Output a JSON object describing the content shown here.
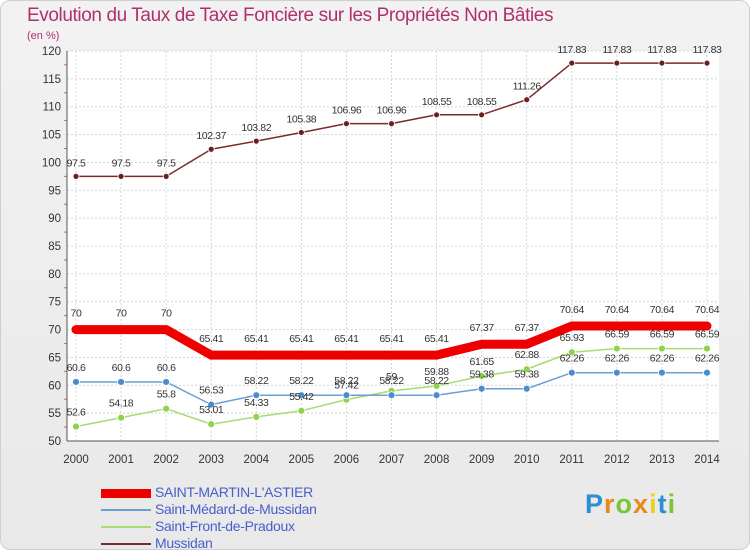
{
  "header": {
    "title": "Evolution du Taux de Taxe Foncière sur les Propriétés Non Bâties",
    "unit": "(en %)"
  },
  "brand": {
    "letters": [
      "P",
      "r",
      "o",
      "x",
      "i",
      "t",
      "i"
    ],
    "colors": [
      "#2c8fd4",
      "#e8891a",
      "#7cc43a",
      "#e8891a",
      "#e8d21a",
      "#2c8fd4",
      "#7cc43a"
    ]
  },
  "chart_data": {
    "type": "line",
    "title": "Evolution du Taux de Taxe Foncière sur les Propriétés Non Bâties",
    "ylabel": "(en %)",
    "xlabel": "",
    "ylim": [
      50,
      120
    ],
    "yticks": [
      "50",
      "55",
      "60",
      "65",
      "70",
      "75",
      "80",
      "85",
      "90",
      "95",
      "100",
      "105",
      "110",
      "115",
      "120"
    ],
    "x": [
      "2000",
      "2001",
      "2002",
      "2003",
      "2004",
      "2005",
      "2006",
      "2007",
      "2008",
      "2009",
      "2010",
      "2011",
      "2012",
      "2013",
      "2014"
    ],
    "grid": true,
    "series": [
      {
        "name": "SAINT-MARTIN-L'ASTIER",
        "color": "#ee0000",
        "marker": "#ee0000",
        "values": [
          70,
          70,
          70,
          65.41,
          65.41,
          65.41,
          65.41,
          65.41,
          65.41,
          67.37,
          67.37,
          70.64,
          70.64,
          70.64,
          70.64
        ],
        "labels": [
          "70",
          "70",
          "70",
          "65.41",
          "65.41",
          "65.41",
          "65.41",
          "65.41",
          "65.41",
          "67.37",
          "67.37",
          "70.64",
          "70.64",
          "70.64",
          "70.64"
        ]
      },
      {
        "name": "Saint-Médard-de-Mussidan",
        "color": "#6c9fd0",
        "marker": "#4a8cd0",
        "values": [
          60.6,
          60.6,
          60.6,
          56.53,
          58.22,
          58.22,
          58.22,
          58.22,
          58.22,
          59.38,
          59.38,
          62.26,
          62.26,
          62.26,
          62.26
        ],
        "labels": [
          "60.6",
          "60.6",
          "60.6",
          "56.53",
          "58.22",
          "58.22",
          "58.22",
          "58.22",
          "58.22",
          "59.38",
          "59.38",
          "62.26",
          "62.26",
          "62.26",
          "62.26"
        ]
      },
      {
        "name": "Saint-Front-de-Pradoux",
        "color": "#a8db72",
        "marker": "#8ed34a",
        "values": [
          52.6,
          54.18,
          55.8,
          53.01,
          54.33,
          55.42,
          57.42,
          59,
          59.88,
          61.65,
          62.88,
          65.93,
          66.59,
          66.59,
          66.59
        ],
        "labels": [
          "52.6",
          "54.18",
          "55.8",
          "53.01",
          "54.33",
          "55.42",
          "57.42",
          "59",
          "59.88",
          "61.65",
          "62.88",
          "65.93",
          "66.59",
          "66.59",
          "66.59"
        ]
      },
      {
        "name": "Mussidan",
        "color": "#7a2a2a",
        "marker": "#6b1f1f",
        "values": [
          97.5,
          97.5,
          97.5,
          102.37,
          103.82,
          105.38,
          106.96,
          106.96,
          108.55,
          108.55,
          111.26,
          117.83,
          117.83,
          117.83,
          117.83
        ],
        "labels": [
          "97.5",
          "97.5",
          "97.5",
          "102.37",
          "103.82",
          "105.38",
          "106.96",
          "106.96",
          "108.55",
          "108.55",
          "111.26",
          "117.83",
          "117.83",
          "117.83",
          "117.83"
        ]
      }
    ]
  },
  "legend": {
    "items": [
      {
        "label": "SAINT-MARTIN-L'ASTIER",
        "color": "#ee0000",
        "text_color": "#4860c8"
      },
      {
        "label": "Saint-Médard-de-Mussidan",
        "color": "#6c9fd0",
        "text_color": "#4860c8"
      },
      {
        "label": "Saint-Front-de-Pradoux",
        "color": "#a8db72",
        "text_color": "#4860c8"
      },
      {
        "label": "Mussidan",
        "color": "#7a2a2a",
        "text_color": "#4860c8"
      }
    ]
  }
}
